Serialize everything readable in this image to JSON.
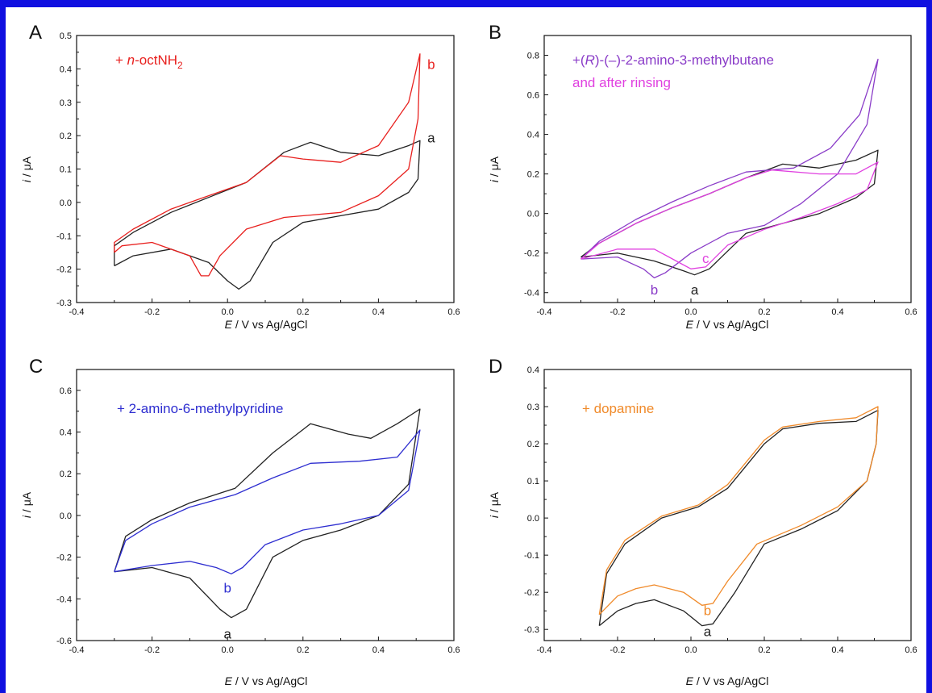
{
  "chart_data": [
    {
      "panel": "A",
      "type": "line",
      "xlabel_pre": "",
      "xlabel_it": "E",
      "xlabel_post": " / V vs Ag/AgCl",
      "ylabel_it": "i",
      "ylabel_post": " / μA",
      "xlim": [
        -0.4,
        0.6
      ],
      "ylim": [
        -0.3,
        0.5
      ],
      "xticks": [
        "-0.4",
        "-0.2",
        "0.0",
        "0.2",
        "0.4",
        "0.6"
      ],
      "yticks": [
        "-0.3",
        "-0.2",
        "-0.1",
        "0.0",
        "0.1",
        "0.2",
        "0.3",
        "0.4",
        "0.5"
      ],
      "legend": [
        {
          "pre": "+ ",
          "it": "n",
          "post": "-octNH",
          "sub": "2",
          "color": "#e8201e"
        }
      ],
      "series": [
        {
          "color": "#222222",
          "points": [
            [
              -0.3,
              -0.19
            ],
            [
              -0.25,
              -0.16
            ],
            [
              -0.15,
              -0.14
            ],
            [
              -0.05,
              -0.18
            ],
            [
              0.0,
              -0.235
            ],
            [
              0.03,
              -0.26
            ],
            [
              0.06,
              -0.235
            ],
            [
              0.12,
              -0.12
            ],
            [
              0.2,
              -0.06
            ],
            [
              0.3,
              -0.04
            ],
            [
              0.4,
              -0.02
            ],
            [
              0.48,
              0.03
            ],
            [
              0.505,
              0.07
            ],
            [
              0.51,
              0.185
            ],
            [
              0.48,
              0.17
            ],
            [
              0.4,
              0.14
            ],
            [
              0.3,
              0.15
            ],
            [
              0.22,
              0.18
            ],
            [
              0.15,
              0.15
            ],
            [
              0.05,
              0.06
            ],
            [
              -0.05,
              0.015
            ],
            [
              -0.15,
              -0.03
            ],
            [
              -0.25,
              -0.09
            ],
            [
              -0.3,
              -0.13
            ],
            [
              -0.3,
              -0.19
            ]
          ]
        },
        {
          "color": "#e8201e",
          "points": [
            [
              -0.3,
              -0.15
            ],
            [
              -0.28,
              -0.13
            ],
            [
              -0.2,
              -0.12
            ],
            [
              -0.1,
              -0.16
            ],
            [
              -0.07,
              -0.22
            ],
            [
              -0.05,
              -0.22
            ],
            [
              -0.02,
              -0.16
            ],
            [
              0.05,
              -0.08
            ],
            [
              0.15,
              -0.045
            ],
            [
              0.3,
              -0.03
            ],
            [
              0.4,
              0.02
            ],
            [
              0.48,
              0.1
            ],
            [
              0.505,
              0.25
            ],
            [
              0.51,
              0.445
            ],
            [
              0.48,
              0.3
            ],
            [
              0.4,
              0.17
            ],
            [
              0.3,
              0.12
            ],
            [
              0.2,
              0.13
            ],
            [
              0.14,
              0.14
            ],
            [
              0.05,
              0.06
            ],
            [
              -0.05,
              0.02
            ],
            [
              -0.15,
              -0.02
            ],
            [
              -0.25,
              -0.08
            ],
            [
              -0.3,
              -0.12
            ],
            [
              -0.3,
              -0.15
            ]
          ]
        }
      ],
      "curve_labels": [
        {
          "text": "b",
          "x": 0.54,
          "y": 0.4,
          "color": "#e8201e"
        },
        {
          "text": "a",
          "x": 0.54,
          "y": 0.18,
          "color": "#222222"
        }
      ]
    },
    {
      "panel": "B",
      "type": "line",
      "xlabel_pre": "",
      "xlabel_it": "E",
      "xlabel_post": " / V vs Ag/AgCl",
      "ylabel_it": "i",
      "ylabel_post": " / μA",
      "xlim": [
        -0.4,
        0.6
      ],
      "ylim": [
        -0.45,
        0.9
      ],
      "xticks": [
        "-0.4",
        "-0.2",
        "0.0",
        "0.2",
        "0.4",
        "0.6"
      ],
      "yticks": [
        "-0.4",
        "-0.2",
        "0.0",
        "0.2",
        "0.4",
        "0.6",
        "0.8"
      ],
      "legend": [
        {
          "pre": "+(",
          "it": "R",
          "post": ")-(–)-2-amino-3-methylbutane",
          "sub": "",
          "color": "#8a3cc8"
        },
        {
          "pre": "and after rinsing",
          "it": "",
          "post": "",
          "sub": "",
          "color": "#e040e0"
        }
      ],
      "series": [
        {
          "color": "#222222",
          "points": [
            [
              -0.3,
              -0.22
            ],
            [
              -0.2,
              -0.2
            ],
            [
              -0.1,
              -0.24
            ],
            [
              -0.02,
              -0.29
            ],
            [
              0.01,
              -0.31
            ],
            [
              0.05,
              -0.28
            ],
            [
              0.15,
              -0.1
            ],
            [
              0.25,
              -0.05
            ],
            [
              0.35,
              0.0
            ],
            [
              0.45,
              0.08
            ],
            [
              0.5,
              0.15
            ],
            [
              0.51,
              0.32
            ],
            [
              0.45,
              0.27
            ],
            [
              0.35,
              0.23
            ],
            [
              0.25,
              0.25
            ],
            [
              0.15,
              0.18
            ],
            [
              0.05,
              0.1
            ],
            [
              -0.05,
              0.03
            ],
            [
              -0.15,
              -0.05
            ],
            [
              -0.25,
              -0.15
            ],
            [
              -0.3,
              -0.22
            ]
          ]
        },
        {
          "color": "#8a3cc8",
          "points": [
            [
              -0.3,
              -0.23
            ],
            [
              -0.2,
              -0.22
            ],
            [
              -0.13,
              -0.28
            ],
            [
              -0.1,
              -0.325
            ],
            [
              -0.07,
              -0.3
            ],
            [
              0.0,
              -0.2
            ],
            [
              0.1,
              -0.1
            ],
            [
              0.2,
              -0.06
            ],
            [
              0.3,
              0.05
            ],
            [
              0.4,
              0.2
            ],
            [
              0.48,
              0.45
            ],
            [
              0.51,
              0.78
            ],
            [
              0.46,
              0.5
            ],
            [
              0.38,
              0.33
            ],
            [
              0.28,
              0.23
            ],
            [
              0.15,
              0.21
            ],
            [
              0.05,
              0.14
            ],
            [
              -0.05,
              0.06
            ],
            [
              -0.15,
              -0.03
            ],
            [
              -0.25,
              -0.14
            ],
            [
              -0.3,
              -0.23
            ]
          ]
        },
        {
          "color": "#e040e0",
          "points": [
            [
              -0.3,
              -0.23
            ],
            [
              -0.2,
              -0.18
            ],
            [
              -0.1,
              -0.18
            ],
            [
              -0.03,
              -0.25
            ],
            [
              0.0,
              -0.28
            ],
            [
              0.04,
              -0.27
            ],
            [
              0.1,
              -0.16
            ],
            [
              0.2,
              -0.08
            ],
            [
              0.3,
              -0.02
            ],
            [
              0.4,
              0.05
            ],
            [
              0.48,
              0.12
            ],
            [
              0.51,
              0.26
            ],
            [
              0.45,
              0.2
            ],
            [
              0.35,
              0.2
            ],
            [
              0.22,
              0.22
            ],
            [
              0.15,
              0.18
            ],
            [
              0.05,
              0.1
            ],
            [
              -0.05,
              0.03
            ],
            [
              -0.15,
              -0.05
            ],
            [
              -0.25,
              -0.15
            ],
            [
              -0.3,
              -0.23
            ]
          ]
        }
      ],
      "curve_labels": [
        {
          "text": "c",
          "x": 0.04,
          "y": -0.25,
          "color": "#e040e0"
        },
        {
          "text": "b",
          "x": -0.1,
          "y": -0.41,
          "color": "#8a3cc8"
        },
        {
          "text": "a",
          "x": 0.01,
          "y": -0.41,
          "color": "#222222"
        }
      ]
    },
    {
      "panel": "C",
      "type": "line",
      "xlabel_pre": "",
      "xlabel_it": "E",
      "xlabel_post": " / V vs Ag/AgCl",
      "ylabel_it": "i",
      "ylabel_post": " / μA",
      "xlim": [
        -0.4,
        0.6
      ],
      "ylim": [
        -0.6,
        0.7
      ],
      "xticks": [
        "-0.4",
        "-0.2",
        "0.0",
        "0.2",
        "0.4",
        "0.6"
      ],
      "yticks": [
        "-0.6",
        "-0.4",
        "-0.2",
        "0.0",
        "0.2",
        "0.4",
        "0.6"
      ],
      "legend": [
        {
          "pre": "+ 2-amino-6-methylpyridine",
          "it": "",
          "post": "",
          "sub": "",
          "color": "#2e2ed0"
        }
      ],
      "series": [
        {
          "color": "#222222",
          "points": [
            [
              -0.3,
              -0.27
            ],
            [
              -0.2,
              -0.25
            ],
            [
              -0.1,
              -0.3
            ],
            [
              -0.02,
              -0.45
            ],
            [
              0.01,
              -0.49
            ],
            [
              0.05,
              -0.45
            ],
            [
              0.12,
              -0.2
            ],
            [
              0.2,
              -0.12
            ],
            [
              0.3,
              -0.07
            ],
            [
              0.4,
              0.0
            ],
            [
              0.48,
              0.15
            ],
            [
              0.51,
              0.51
            ],
            [
              0.45,
              0.44
            ],
            [
              0.38,
              0.37
            ],
            [
              0.32,
              0.39
            ],
            [
              0.22,
              0.44
            ],
            [
              0.12,
              0.3
            ],
            [
              0.02,
              0.13
            ],
            [
              -0.1,
              0.06
            ],
            [
              -0.2,
              -0.02
            ],
            [
              -0.27,
              -0.1
            ],
            [
              -0.3,
              -0.27
            ]
          ]
        },
        {
          "color": "#2e2ed0",
          "points": [
            [
              -0.3,
              -0.27
            ],
            [
              -0.2,
              -0.24
            ],
            [
              -0.1,
              -0.22
            ],
            [
              -0.03,
              -0.25
            ],
            [
              0.01,
              -0.28
            ],
            [
              0.04,
              -0.25
            ],
            [
              0.1,
              -0.14
            ],
            [
              0.2,
              -0.07
            ],
            [
              0.3,
              -0.04
            ],
            [
              0.4,
              0.0
            ],
            [
              0.48,
              0.12
            ],
            [
              0.51,
              0.41
            ],
            [
              0.45,
              0.28
            ],
            [
              0.35,
              0.26
            ],
            [
              0.22,
              0.25
            ],
            [
              0.12,
              0.18
            ],
            [
              0.02,
              0.1
            ],
            [
              -0.1,
              0.04
            ],
            [
              -0.2,
              -0.04
            ],
            [
              -0.27,
              -0.12
            ],
            [
              -0.3,
              -0.27
            ]
          ]
        }
      ],
      "curve_labels": [
        {
          "text": "b",
          "x": 0.0,
          "y": -0.37,
          "color": "#2e2ed0"
        },
        {
          "text": "a",
          "x": 0.0,
          "y": -0.59,
          "color": "#222222"
        }
      ]
    },
    {
      "panel": "D",
      "type": "line",
      "xlabel_pre": "",
      "xlabel_it": "E",
      "xlabel_post": " / V vs Ag/AgCl",
      "ylabel_it": "i",
      "ylabel_post": " / μA",
      "xlim": [
        -0.4,
        0.6
      ],
      "ylim": [
        -0.33,
        0.4
      ],
      "xticks": [
        "-0.4",
        "-0.2",
        "0.0",
        "0.2",
        "0.4",
        "0.6"
      ],
      "yticks": [
        "-0.3",
        "-0.2",
        "-0.1",
        "0.0",
        "0.1",
        "0.2",
        "0.3",
        "0.4"
      ],
      "legend": [
        {
          "pre": "+ dopamine",
          "it": "",
          "post": "",
          "sub": "",
          "color": "#f08a2a"
        }
      ],
      "series": [
        {
          "color": "#222222",
          "points": [
            [
              -0.25,
              -0.29
            ],
            [
              -0.2,
              -0.25
            ],
            [
              -0.15,
              -0.23
            ],
            [
              -0.1,
              -0.22
            ],
            [
              -0.02,
              -0.25
            ],
            [
              0.03,
              -0.29
            ],
            [
              0.06,
              -0.285
            ],
            [
              0.12,
              -0.2
            ],
            [
              0.2,
              -0.07
            ],
            [
              0.3,
              -0.03
            ],
            [
              0.4,
              0.02
            ],
            [
              0.48,
              0.1
            ],
            [
              0.505,
              0.2
            ],
            [
              0.51,
              0.29
            ],
            [
              0.45,
              0.26
            ],
            [
              0.35,
              0.255
            ],
            [
              0.25,
              0.24
            ],
            [
              0.2,
              0.2
            ],
            [
              0.1,
              0.08
            ],
            [
              0.02,
              0.03
            ],
            [
              -0.08,
              0.0
            ],
            [
              -0.18,
              -0.07
            ],
            [
              -0.23,
              -0.15
            ],
            [
              -0.25,
              -0.29
            ]
          ]
        },
        {
          "color": "#f08a2a",
          "points": [
            [
              -0.25,
              -0.26
            ],
            [
              -0.2,
              -0.21
            ],
            [
              -0.15,
              -0.19
            ],
            [
              -0.1,
              -0.18
            ],
            [
              -0.02,
              -0.2
            ],
            [
              0.03,
              -0.235
            ],
            [
              0.06,
              -0.23
            ],
            [
              0.1,
              -0.17
            ],
            [
              0.18,
              -0.07
            ],
            [
              0.3,
              -0.02
            ],
            [
              0.4,
              0.03
            ],
            [
              0.48,
              0.1
            ],
            [
              0.505,
              0.2
            ],
            [
              0.51,
              0.3
            ],
            [
              0.45,
              0.27
            ],
            [
              0.35,
              0.26
            ],
            [
              0.25,
              0.245
            ],
            [
              0.2,
              0.21
            ],
            [
              0.1,
              0.09
            ],
            [
              0.02,
              0.035
            ],
            [
              -0.08,
              0.005
            ],
            [
              -0.18,
              -0.06
            ],
            [
              -0.23,
              -0.14
            ],
            [
              -0.25,
              -0.26
            ]
          ]
        }
      ],
      "curve_labels": [
        {
          "text": "b",
          "x": 0.045,
          "y": -0.262,
          "color": "#f08a2a"
        },
        {
          "text": "a",
          "x": 0.045,
          "y": -0.318,
          "color": "#222222"
        }
      ]
    }
  ]
}
